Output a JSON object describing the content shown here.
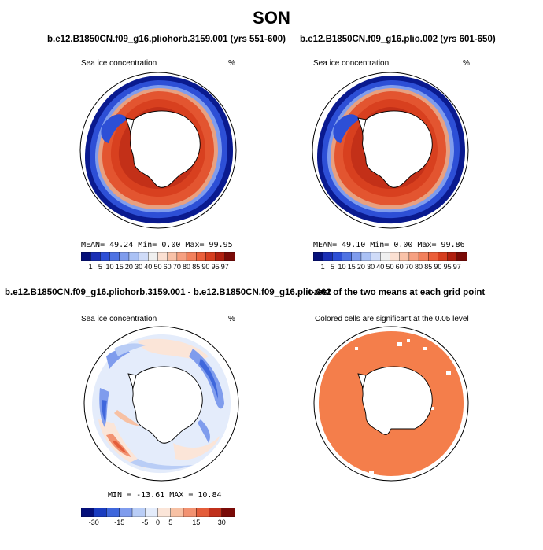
{
  "title": "SON",
  "panels": {
    "p1": {
      "title": "b.e12.B1850CN.f09_g16.pliohorb.3159.001 (yrs 551-600)",
      "variable": "Sea ice concentration",
      "units": "%",
      "stats": "MEAN=  49.24   Min=    0.00   Max=   99.95",
      "colorbar": {
        "labels": [
          "1",
          "5",
          "10",
          "15",
          "20",
          "30",
          "40",
          "50",
          "60",
          "70",
          "80",
          "85",
          "90",
          "95",
          "97"
        ],
        "colors": [
          "#05107a",
          "#1a2fb5",
          "#2d4fd6",
          "#4f73e3",
          "#7f9ced",
          "#aac1f5",
          "#cfdbf8",
          "#f0f0f0",
          "#fbe0d2",
          "#f9c2a8",
          "#f6a081",
          "#f2805c",
          "#eb5f3a",
          "#d63e1f",
          "#b01f0f",
          "#7a0a07"
        ],
        "mean": 49.24,
        "min": 0.0,
        "max": 99.95
      }
    },
    "p2": {
      "title": "b.e12.B1850CN.f09_g16.plio.002 (yrs 601-650)",
      "variable": "Sea ice concentration",
      "units": "%",
      "stats": "MEAN=  49.10   Min=    0.00   Max=   99.86",
      "colorbar": {
        "labels": [
          "1",
          "5",
          "10",
          "15",
          "20",
          "30",
          "40",
          "50",
          "60",
          "70",
          "80",
          "85",
          "90",
          "95",
          "97"
        ],
        "mean": 49.1,
        "min": 0.0,
        "max": 99.86
      }
    },
    "p3": {
      "title": "b.e12.B1850CN.f09_g16.pliohorb.3159.001 - b.e12.B1850CN.f09_g16.plio.002",
      "variable": "Sea ice concentration",
      "units": "%",
      "stats": "MIN = -13.61  MAX =  10.84",
      "colorbar": {
        "labels": [
          "-30",
          "-15",
          "-5",
          "0",
          "5",
          "15",
          "30"
        ],
        "colors": [
          "#05107a",
          "#1a3cc0",
          "#3f67dc",
          "#7f9ced",
          "#b9cdf6",
          "#e4ecfb",
          "#fbe5d8",
          "#f7c1a4",
          "#f29271",
          "#e45d3a",
          "#c0301b",
          "#7a0a07"
        ],
        "min": -13.61,
        "max": 10.84
      }
    },
    "p4": {
      "title": "t-test of the two means at each grid point",
      "subtitle": "Colored cells are significant at the 0.05 level"
    }
  }
}
